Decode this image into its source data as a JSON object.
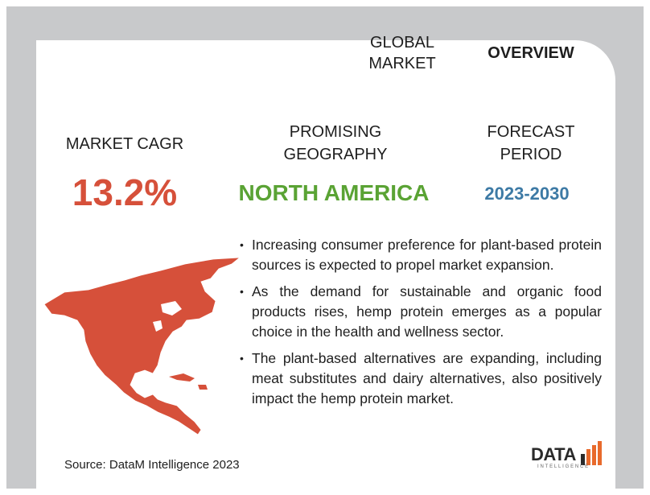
{
  "header": {
    "tab_global": "GLOBAL MARKET",
    "tab_overview": "OVERVIEW"
  },
  "metrics": {
    "cagr_label": "MARKET CAGR",
    "cagr_value": "13.2%",
    "geography_label": "PROMISING GEOGRAPHY",
    "geography_value": "NORTH AMERICA",
    "forecast_label": "FORECAST PERIOD",
    "forecast_value": "2023-2030"
  },
  "bullets": [
    "Increasing consumer preference for plant-based protein sources is expected to propel market expansion.",
    "As the demand for sustainable and organic food products rises, hemp protein emerges as a popular choice in the health and wellness sector.",
    "The plant-based alternatives are expanding, including meat substitutes and dairy alternatives, also positively impact the hemp protein market."
  ],
  "footer": {
    "source": "Source: DataM Intelligence 2023",
    "logo_text": "DATA",
    "logo_sub": "INTELLIGENCE"
  },
  "colors": {
    "accent_red": "#d6503a",
    "accent_green": "#5aa334",
    "accent_blue": "#3d7aa5",
    "frame_gray": "#c8c9cb",
    "logo_orange": "#e86a2c"
  },
  "icons": {
    "map": "north-america-map-icon",
    "logo_bars": "bar-chart-logo-icon"
  }
}
